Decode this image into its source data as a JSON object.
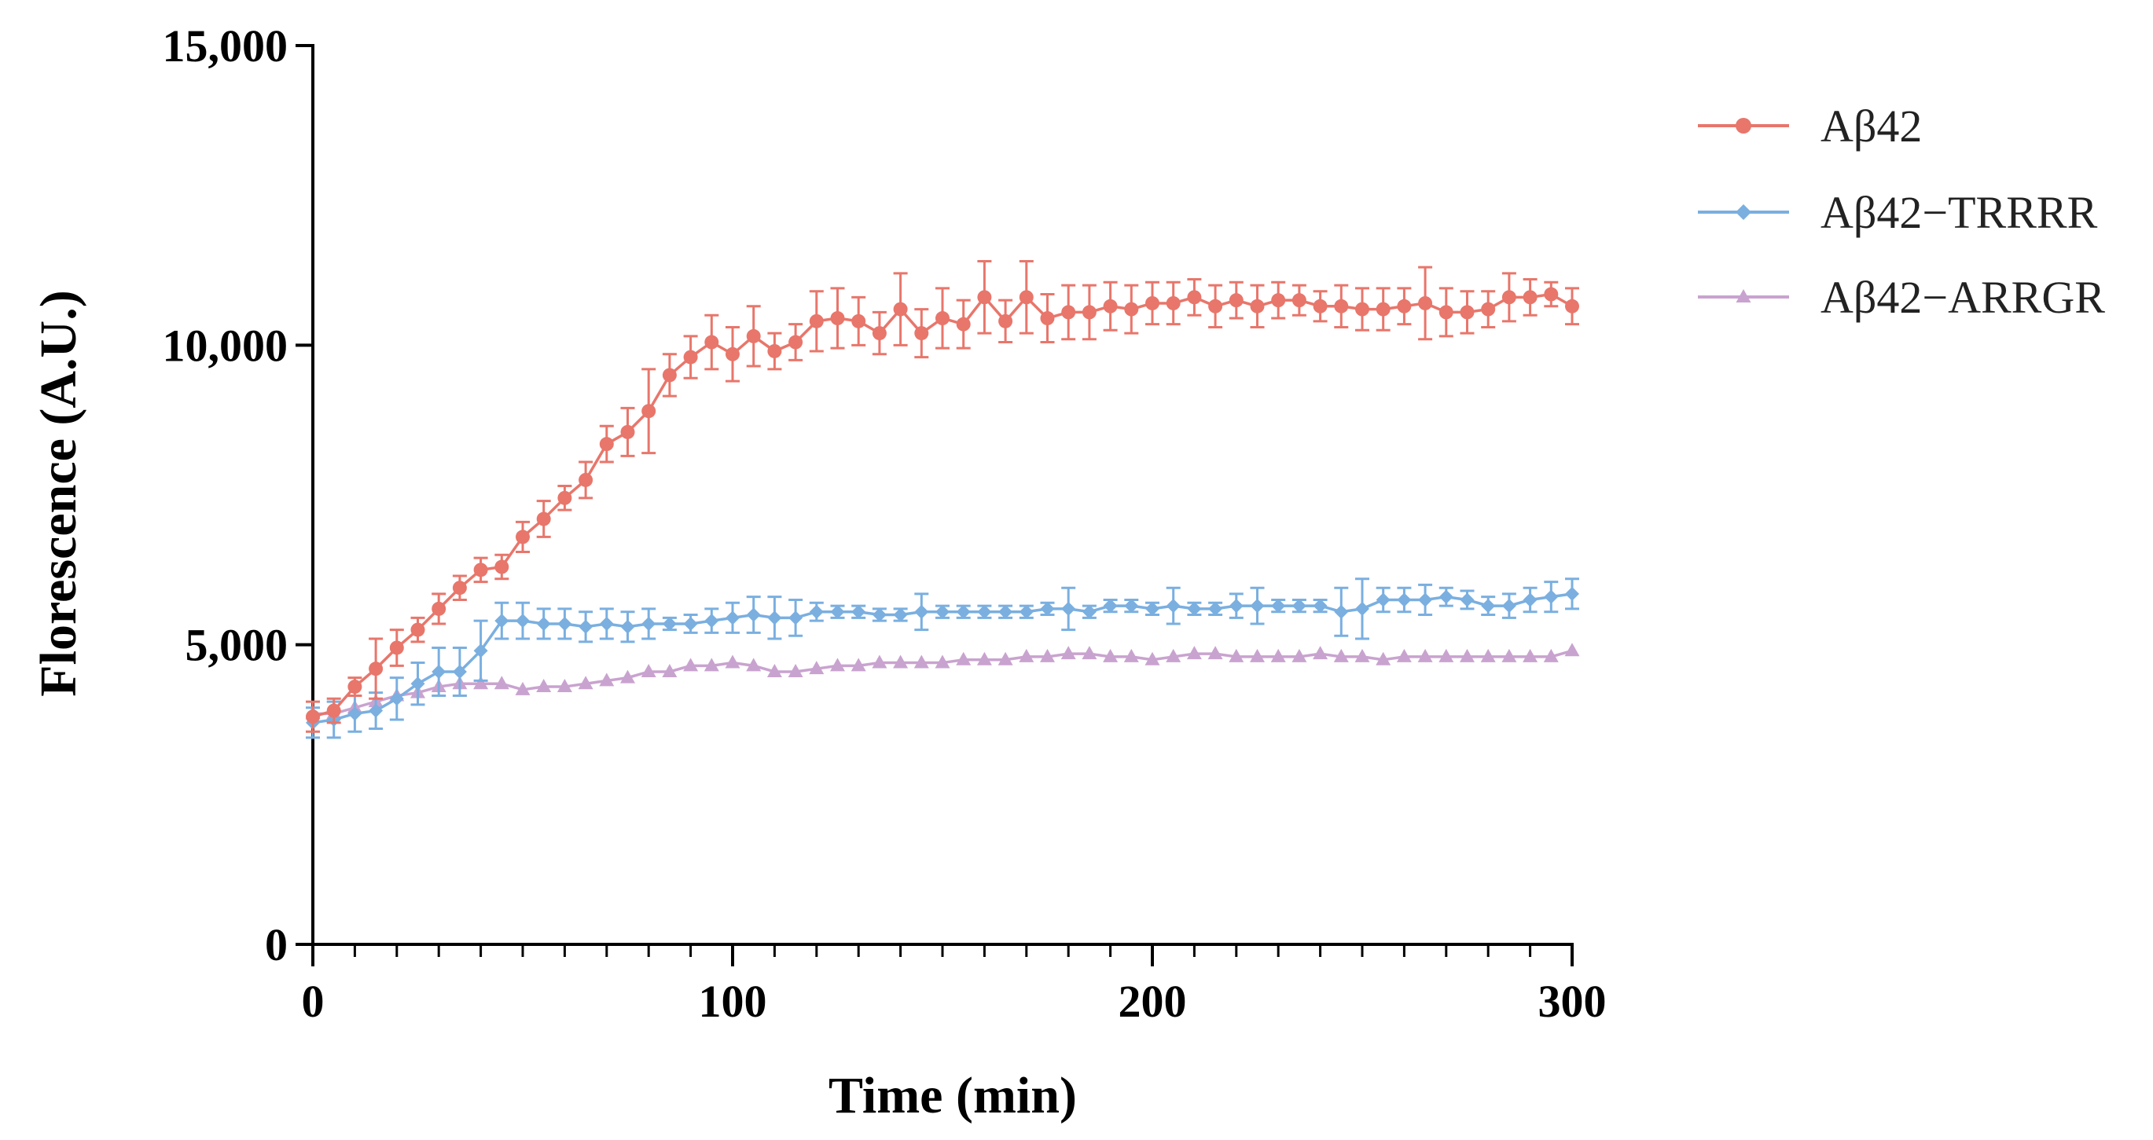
{
  "chart_data": {
    "type": "line",
    "title": "",
    "xlabel": "Time (min)",
    "ylabel": "Florescence (A.U.)",
    "xlim": [
      0,
      300
    ],
    "ylim": [
      0,
      15000
    ],
    "x_ticks": [
      0,
      100,
      200,
      300
    ],
    "x_tick_labels": [
      "0",
      "100",
      "200",
      "300"
    ],
    "y_ticks": [
      0,
      5000,
      10000,
      15000
    ],
    "y_tick_labels": [
      "0",
      "5,000",
      "10,000",
      "15,000"
    ],
    "grid": false,
    "legend_position": "top-right",
    "x": [
      0,
      5,
      10,
      15,
      20,
      25,
      30,
      35,
      40,
      45,
      50,
      55,
      60,
      65,
      70,
      75,
      80,
      85,
      90,
      95,
      100,
      105,
      110,
      115,
      120,
      125,
      130,
      135,
      140,
      145,
      150,
      155,
      160,
      165,
      170,
      175,
      180,
      185,
      190,
      195,
      200,
      205,
      210,
      215,
      220,
      225,
      230,
      235,
      240,
      245,
      250,
      255,
      260,
      265,
      270,
      275,
      280,
      285,
      290,
      295,
      300
    ],
    "series": [
      {
        "name": "Aβ42",
        "color": "#e8766b",
        "marker": "circle",
        "values": [
          3800,
          3900,
          4300,
          4600,
          4950,
          5250,
          5600,
          5950,
          6250,
          6300,
          6800,
          7100,
          7450,
          7750,
          8350,
          8550,
          8900,
          9500,
          9800,
          10050,
          9850,
          10150,
          9900,
          10050,
          10400,
          10450,
          10400,
          10200,
          10600,
          10200,
          10450,
          10350,
          10800,
          10400,
          10800,
          10450,
          10550,
          10550,
          10650,
          10600,
          10700,
          10700,
          10800,
          10650,
          10750,
          10650,
          10750,
          10750,
          10650,
          10650,
          10600,
          10600,
          10650,
          10700,
          10550,
          10550,
          10600,
          10800,
          10800,
          10850,
          10650
        ],
        "errors": [
          250,
          200,
          150,
          500,
          300,
          200,
          250,
          200,
          200,
          200,
          250,
          300,
          200,
          300,
          300,
          400,
          700,
          350,
          350,
          450,
          450,
          500,
          300,
          300,
          500,
          500,
          400,
          350,
          600,
          400,
          500,
          400,
          600,
          350,
          600,
          400,
          450,
          450,
          400,
          400,
          350,
          350,
          300,
          350,
          300,
          350,
          300,
          250,
          250,
          350,
          350,
          350,
          300,
          600,
          400,
          350,
          300,
          400,
          300,
          200,
          300
        ]
      },
      {
        "name": "Aβ42−TRRRR",
        "color": "#7aafe0",
        "marker": "diamond",
        "values": [
          3700,
          3750,
          3850,
          3900,
          4100,
          4350,
          4550,
          4550,
          4900,
          5400,
          5400,
          5350,
          5350,
          5300,
          5350,
          5300,
          5350,
          5350,
          5350,
          5400,
          5450,
          5500,
          5450,
          5450,
          5550,
          5550,
          5550,
          5500,
          5500,
          5550,
          5550,
          5550,
          5550,
          5550,
          5550,
          5600,
          5600,
          5550,
          5650,
          5650,
          5600,
          5650,
          5600,
          5600,
          5650,
          5650,
          5650,
          5650,
          5650,
          5550,
          5600,
          5750,
          5750,
          5750,
          5800,
          5750,
          5650,
          5650,
          5750,
          5800,
          5850
        ],
        "errors": [
          250,
          300,
          300,
          300,
          350,
          350,
          400,
          400,
          500,
          300,
          300,
          250,
          250,
          250,
          250,
          250,
          250,
          100,
          150,
          200,
          250,
          300,
          350,
          300,
          150,
          100,
          100,
          100,
          100,
          300,
          100,
          100,
          100,
          100,
          100,
          100,
          350,
          100,
          100,
          100,
          100,
          300,
          100,
          100,
          200,
          300,
          100,
          100,
          100,
          400,
          500,
          200,
          200,
          250,
          150,
          150,
          150,
          200,
          200,
          250,
          250
        ]
      },
      {
        "name": "Aβ42−ARRGR",
        "color": "#c9a3cf",
        "marker": "triangle",
        "values": [
          3850,
          3850,
          3950,
          4050,
          4150,
          4200,
          4300,
          4350,
          4350,
          4350,
          4250,
          4300,
          4300,
          4350,
          4400,
          4450,
          4550,
          4550,
          4650,
          4650,
          4700,
          4650,
          4550,
          4550,
          4600,
          4650,
          4650,
          4700,
          4700,
          4700,
          4700,
          4750,
          4750,
          4750,
          4800,
          4800,
          4850,
          4850,
          4800,
          4800,
          4750,
          4800,
          4850,
          4850,
          4800,
          4800,
          4800,
          4800,
          4850,
          4800,
          4800,
          4750,
          4800,
          4800,
          4800,
          4800,
          4800,
          4800,
          4800,
          4800,
          4900
        ]
      }
    ]
  }
}
